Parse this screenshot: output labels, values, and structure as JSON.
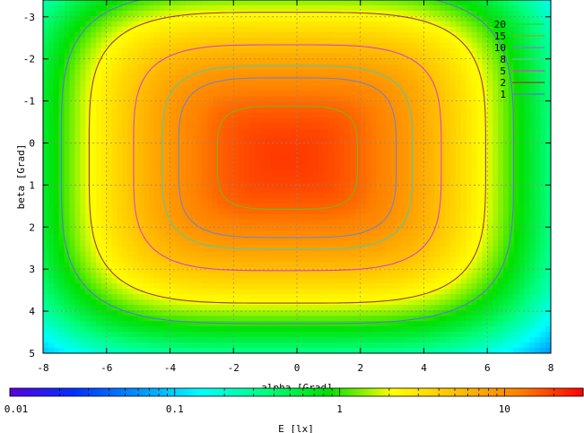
{
  "chart_data": {
    "type": "heatmap",
    "title": "",
    "xlabel": "alpha [Grad]",
    "ylabel": "beta [Grad]",
    "xlim": [
      -8,
      8
    ],
    "ylim": [
      -3.4,
      5
    ],
    "y_reversed": true,
    "x_ticks": [
      "-8",
      "-6",
      "-4",
      "-2",
      "0",
      "2",
      "4",
      "6",
      "8"
    ],
    "y_ticks": [
      "-3",
      "-2",
      "-1",
      "0",
      "1",
      "2",
      "3",
      "4",
      "5"
    ],
    "grid": true,
    "peak_value_lx": 20,
    "contours": [
      {
        "level": "20",
        "color": "#2ad82a"
      },
      {
        "level": "15",
        "color": "#7fb020"
      },
      {
        "level": "10",
        "color": "#6f86c8"
      },
      {
        "level": "8",
        "color": "#55c8a8"
      },
      {
        "level": "5",
        "color": "#e040c0"
      },
      {
        "level": "2",
        "color": "#a03838"
      },
      {
        "level": "1",
        "color": "#5a7ad0"
      }
    ],
    "colorbar": {
      "label": "E [lx]",
      "scale": "log",
      "range": [
        0.01,
        30
      ],
      "ticks": [
        "0.01",
        "0.1",
        "1",
        "10"
      ],
      "colors": [
        "#5a00e0",
        "#0030ff",
        "#0090ff",
        "#00ffff",
        "#00ff80",
        "#00e000",
        "#ffff00",
        "#ffc000",
        "#ff8000",
        "#ff0000"
      ]
    },
    "legend_position": "top-right"
  }
}
